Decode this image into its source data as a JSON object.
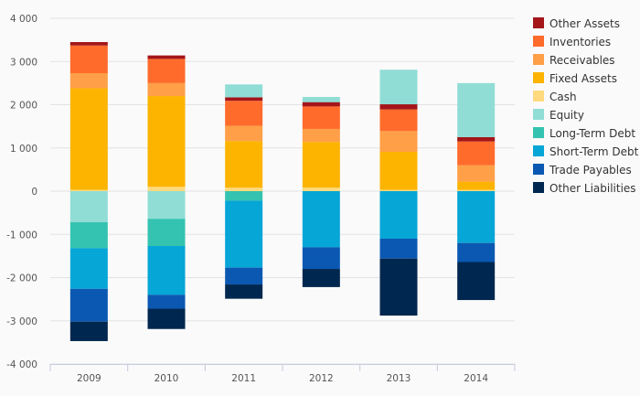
{
  "chart_data": {
    "type": "bar",
    "stacked": true,
    "categories": [
      "2009",
      "2010",
      "2011",
      "2012",
      "2013",
      "2014"
    ],
    "ylim": [
      -4000,
      4000
    ],
    "y_ticks": [
      {
        "value": 4000,
        "label": "4 000"
      },
      {
        "value": 3000,
        "label": "3 000"
      },
      {
        "value": 2000,
        "label": "2 000"
      },
      {
        "value": 1000,
        "label": "1 000"
      },
      {
        "value": 0,
        "label": "0"
      },
      {
        "value": -1000,
        "label": "-1 000"
      },
      {
        "value": -2000,
        "label": "-2 000"
      },
      {
        "value": -3000,
        "label": "-3 000"
      },
      {
        "value": -4000,
        "label": "-4 000"
      }
    ],
    "grid": true,
    "legend_position": "right",
    "positive_series_order": [
      "Cash",
      "Fixed Assets",
      "Receivables",
      "Inventories",
      "Other Assets",
      "Equity"
    ],
    "negative_series_order": [
      "Equity",
      "Long-Term Debt",
      "Short-Term Debt",
      "Trade Payables",
      "Other Liabilities"
    ],
    "legend_order": [
      "Other Assets",
      "Inventories",
      "Receivables",
      "Fixed Assets",
      "Cash",
      "Equity",
      "Long-Term Debt",
      "Short-Term Debt",
      "Trade Payables",
      "Other Liabilities"
    ],
    "series": [
      {
        "name": "Other Assets",
        "color": "#a4161a",
        "values": [
          80,
          80,
          80,
          100,
          120,
          100
        ]
      },
      {
        "name": "Inventories",
        "color": "#ff6b2b",
        "values": [
          640,
          560,
          580,
          520,
          500,
          550
        ]
      },
      {
        "name": "Receivables",
        "color": "#ff9f47",
        "values": [
          350,
          300,
          350,
          300,
          480,
          380
        ]
      },
      {
        "name": "Fixed Assets",
        "color": "#fcb400",
        "values": [
          2350,
          2100,
          1080,
          1060,
          880,
          190
        ]
      },
      {
        "name": "Cash",
        "color": "#ffd97d",
        "values": [
          30,
          100,
          80,
          80,
          30,
          30
        ]
      },
      {
        "name": "Equity",
        "color": "#90ddd5",
        "values": [
          -720,
          -640,
          300,
          120,
          800,
          1250
        ]
      },
      {
        "name": "Long-Term Debt",
        "color": "#34c3b0",
        "values": [
          -600,
          -630,
          -220,
          0,
          0,
          0
        ]
      },
      {
        "name": "Short-Term Debt",
        "color": "#06a6d6",
        "values": [
          -940,
          -1130,
          -1550,
          -1300,
          -1100,
          -1200
        ]
      },
      {
        "name": "Trade Payables",
        "color": "#0b58b2",
        "values": [
          -760,
          -320,
          -390,
          -500,
          -460,
          -440
        ]
      },
      {
        "name": "Other Liabilities",
        "color": "#00274f",
        "values": [
          -450,
          -470,
          -330,
          -420,
          -1320,
          -880
        ]
      }
    ]
  }
}
